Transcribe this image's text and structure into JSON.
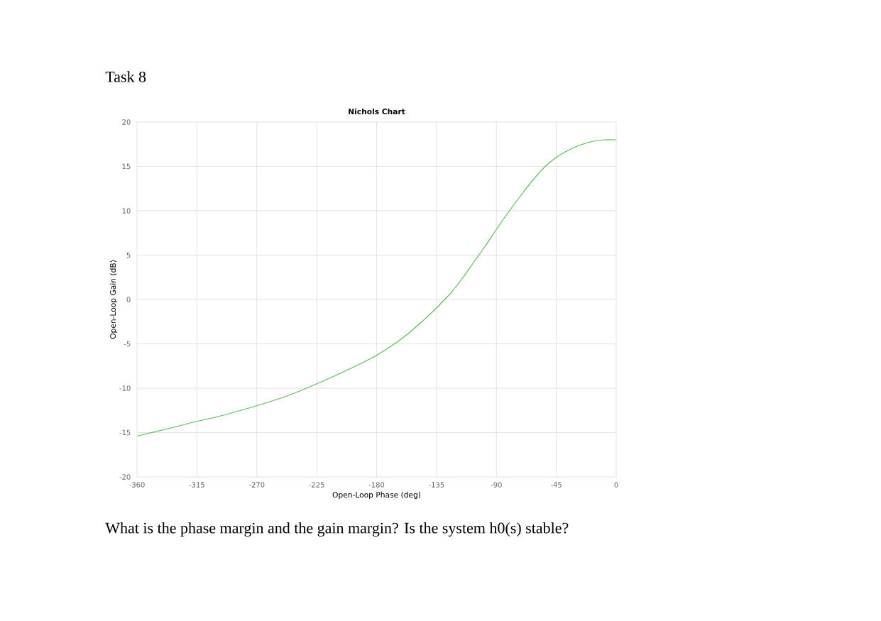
{
  "chart_data": {
    "type": "line",
    "title": "Nichols Chart",
    "xlabel": "Open-Loop Phase (deg)",
    "ylabel": "Open-Loop Gain (dB)",
    "annotations": [
      "Task 8",
      "What is the phase margin and the gain margin? Is the system h0(s) stable?"
    ],
    "x": [
      -360,
      -335,
      -317,
      -299,
      -282,
      -264,
      -246,
      -228,
      -210,
      -193,
      -179,
      -161,
      -143,
      -125,
      -116,
      -107,
      -98.5,
      -89.6,
      -80.7,
      -71.8,
      -62.9,
      -54,
      -45.2,
      -36.3,
      -27.4,
      -18.5,
      -9.6,
      0
    ],
    "series": [
      {
        "color": "#5cbf5c",
        "values": [
          -15.4,
          -14.5,
          -13.8,
          -13.2,
          -12.5,
          -11.7,
          -10.8,
          -9.7,
          -8.5,
          -7.3,
          -6.2,
          -4.4,
          -2.1,
          0.6,
          2.3,
          4.2,
          6.0,
          8.0,
          9.9,
          11.7,
          13.4,
          14.9,
          16.0,
          16.8,
          17.4,
          17.8,
          18.0,
          18.0
        ]
      }
    ],
    "xlim": [
      -360,
      0
    ],
    "ylim": [
      -20,
      20
    ],
    "xticks": [
      -360,
      -315,
      -270,
      -225,
      -180,
      -135,
      -90,
      -45,
      0
    ],
    "yticks": [
      -20,
      -15,
      -10,
      -5,
      0,
      5,
      10,
      15,
      20
    ],
    "grid": true,
    "marker": "none"
  }
}
